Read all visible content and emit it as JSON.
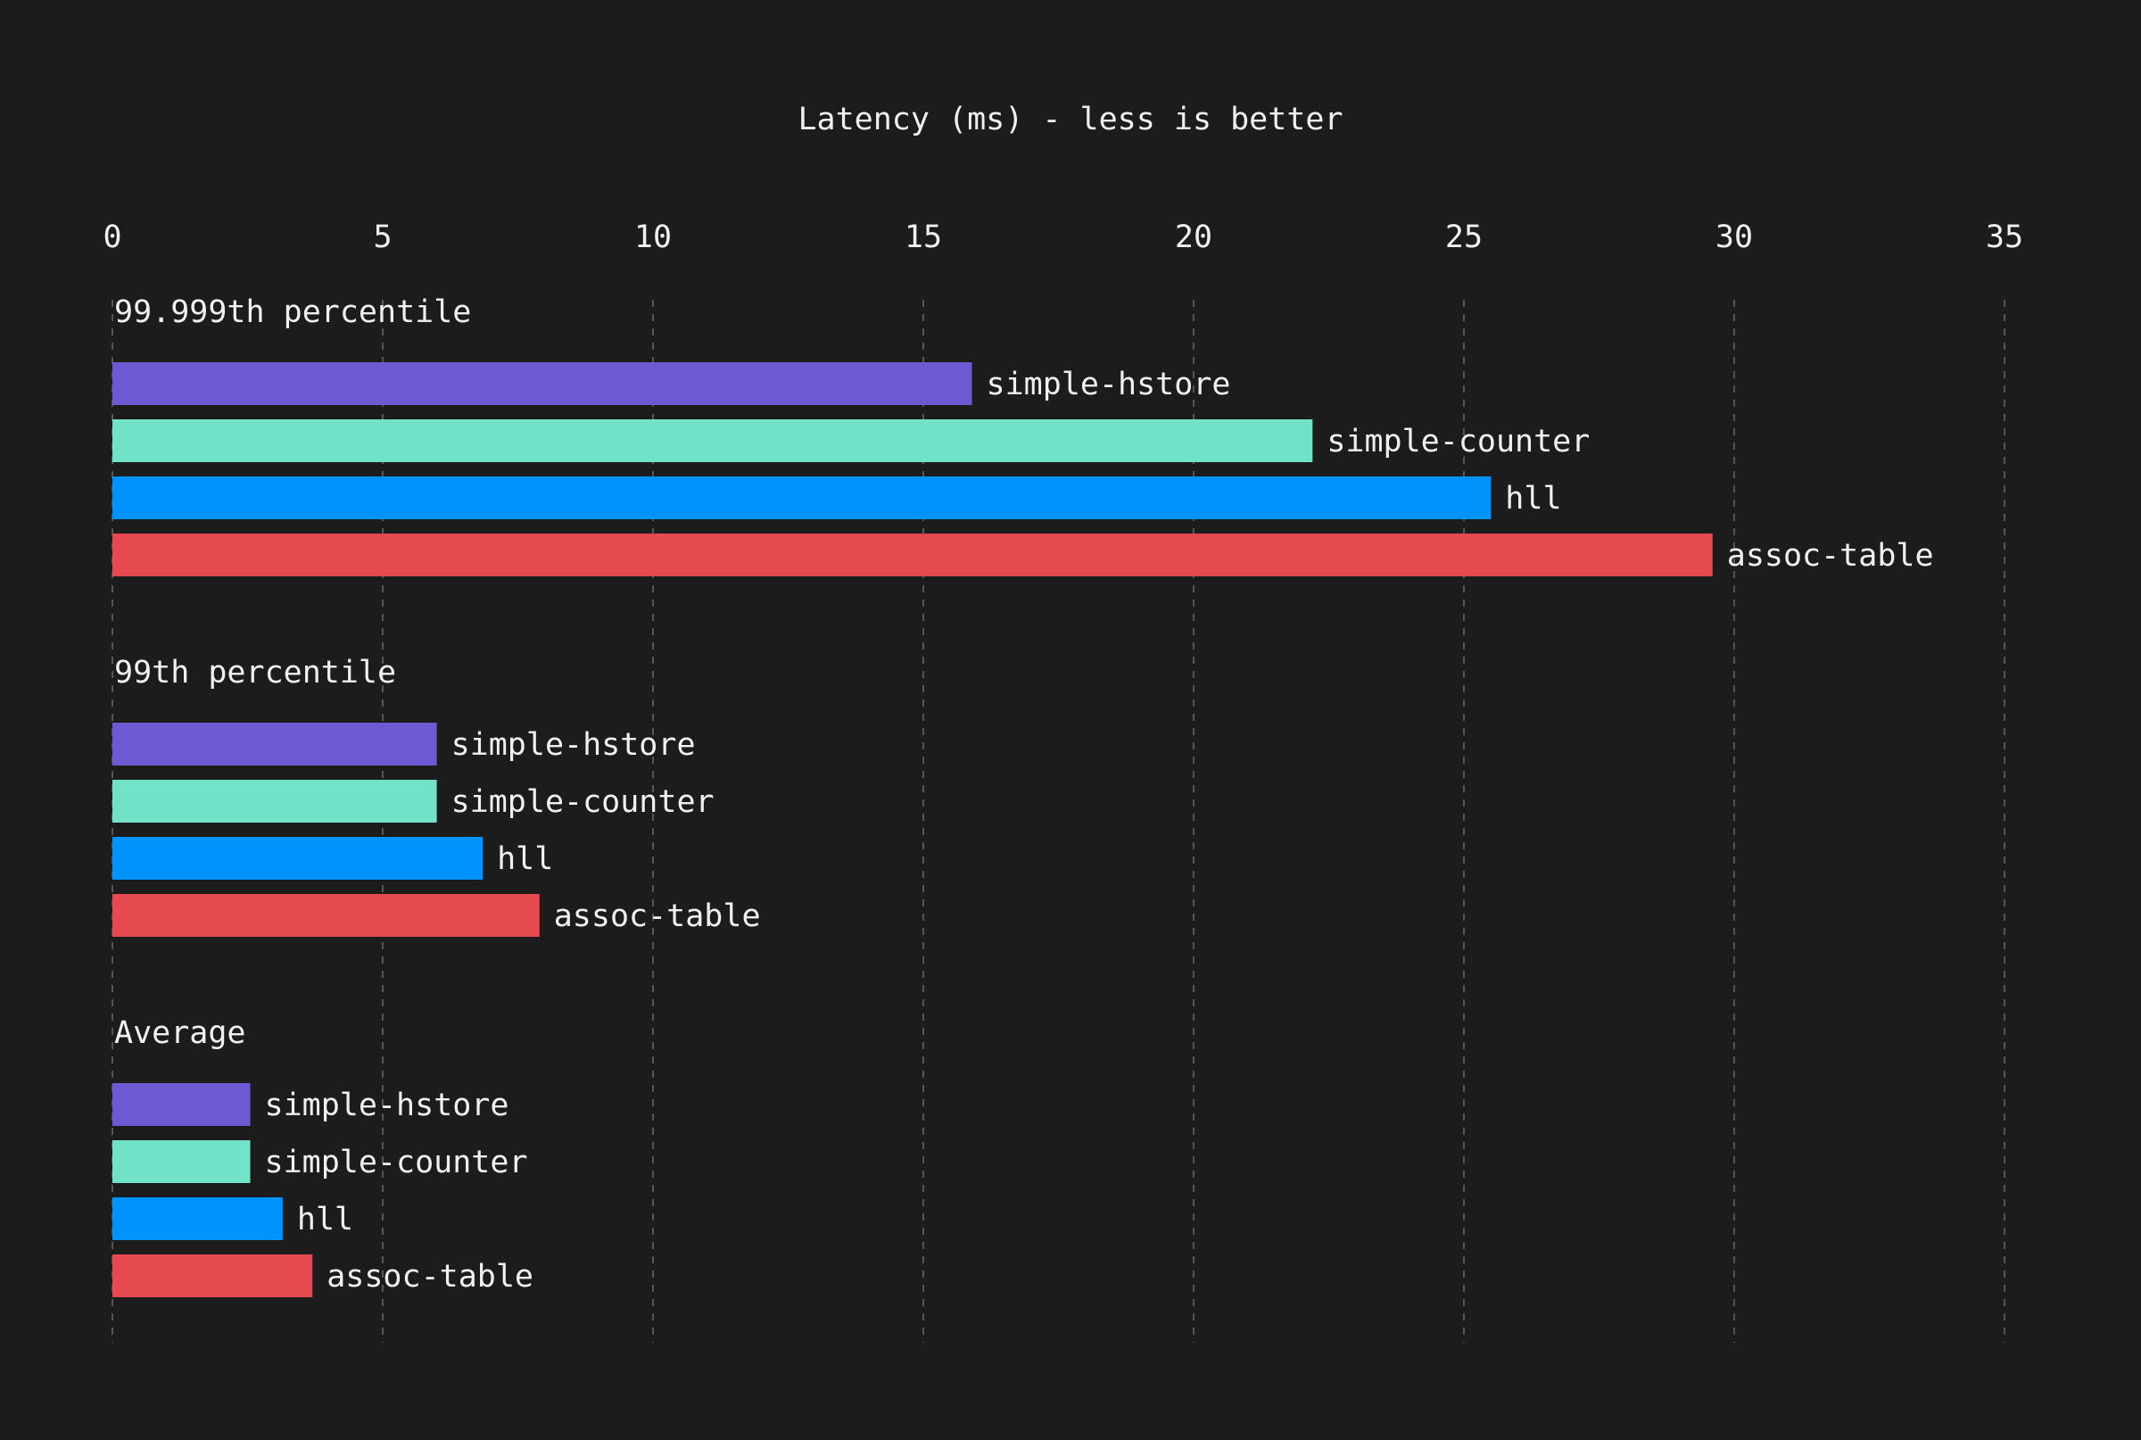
{
  "colors": {
    "background": "#1c1c1c",
    "text": "#f0f0f0",
    "grid": "#6a6a6a"
  },
  "chart_data": {
    "type": "bar",
    "orientation": "horizontal",
    "title": "Latency (ms) - less is better",
    "xlim": [
      0,
      35
    ],
    "xticks": [
      "0",
      "5",
      "10",
      "15",
      "20",
      "25",
      "30",
      "35"
    ],
    "grid": true,
    "legend": "none; series names printed beside each bar",
    "series": [
      {
        "name": "simple-hstore",
        "color": "#6e59d3"
      },
      {
        "name": "simple-counter",
        "color": "#71e1c8"
      },
      {
        "name": "hll",
        "color": "#0092fd"
      },
      {
        "name": "assoc-table",
        "color": "#e44a50"
      }
    ],
    "groups": [
      {
        "label": "99.999th percentile",
        "values": [
          15.9,
          22.2,
          25.5,
          29.6
        ]
      },
      {
        "label": "99th percentile",
        "values": [
          6.0,
          6.0,
          6.85,
          7.9
        ]
      },
      {
        "label": "Average",
        "values": [
          2.55,
          2.55,
          3.15,
          3.7
        ]
      }
    ]
  }
}
